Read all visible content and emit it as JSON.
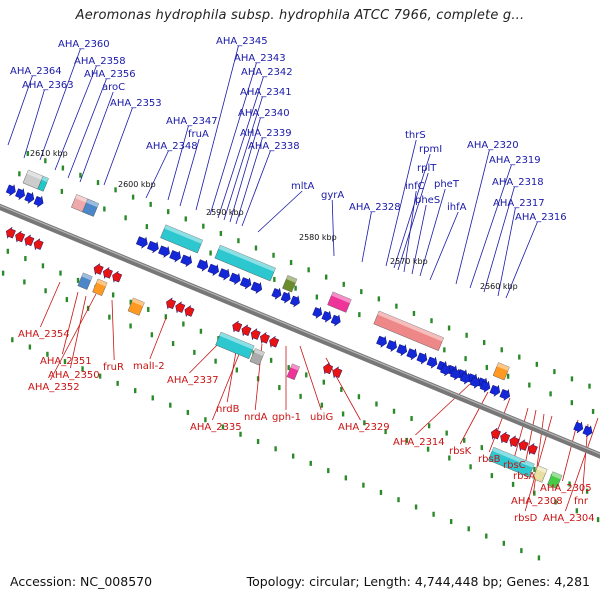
{
  "title": "Aeromonas hydrophila subsp. hydrophila ATCC 7966, complete g...",
  "footer": {
    "accession": "Accession: NC_008570",
    "summary": "Topology: circular; Length: 4,744,448 bp; Genes: 4,281"
  },
  "colors": {
    "backbone": "#888888",
    "forward_label": "#1a1aa8",
    "reverse_label": "#c81414",
    "cds_forward": "#1428d8",
    "cds_reverse": "#e81414",
    "tick": "#2a8a2a"
  },
  "kbp_ticks": [
    "2610 kbp",
    "2600 kbp",
    "2590 kbp",
    "2580 kbp",
    "2570 kbp",
    "2560 kbp"
  ],
  "top_labels": [
    "AHA_2364",
    "AHA_2363",
    "AHA_2360",
    "AHA_2358",
    "AHA_2356",
    "aroC",
    "AHA_2353",
    "AHA_2348",
    "AHA_2347",
    "fruA",
    "AHA_2345",
    "AHA_2343",
    "AHA_2342",
    "AHA_2341",
    "AHA_2340",
    "AHA_2339",
    "AHA_2338",
    "mltA",
    "gyrA",
    "AHA_2328",
    "thrS",
    "rpmI",
    "rplT",
    "infC",
    "pheS",
    "pheT",
    "ihfA",
    "AHA_2320",
    "AHA_2319",
    "AHA_2318",
    "AHA_2317",
    "AHA_2316"
  ],
  "bottom_labels": [
    "AHA_2354",
    "AHA_2351",
    "AHA_2350",
    "AHA_2352",
    "fruR",
    "malI-2",
    "AHA_2337",
    "nrdB",
    "AHA_2335",
    "nrdA",
    "gph-1",
    "ubiG",
    "AHA_2329",
    "AHA_2314",
    "rbsK",
    "rbsB",
    "rbsC",
    "rbsA",
    "AHA_2308",
    "rbsD",
    "AHA_2305",
    "fnr",
    "AHA_2304"
  ]
}
